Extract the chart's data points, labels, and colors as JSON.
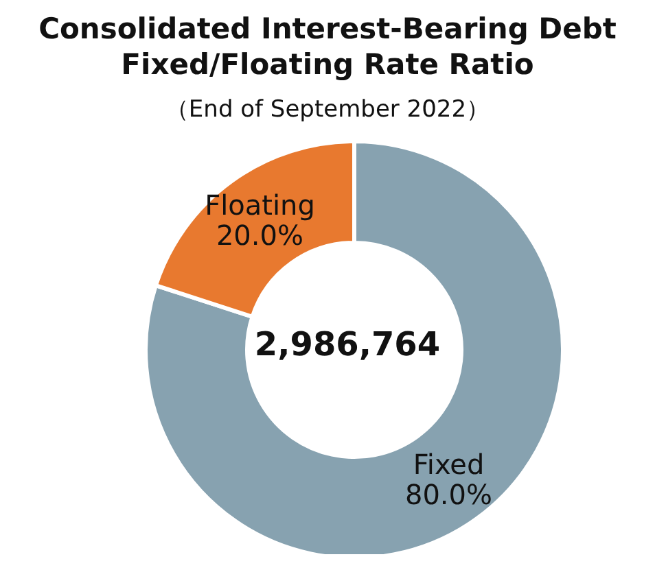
{
  "chart_data": {
    "type": "donut",
    "title": "Consolidated Interest-Bearing Debt\nFixed/Floating Rate Ratio",
    "subtitle": "（End of September 2022）",
    "categories": [
      "Fixed",
      "Floating"
    ],
    "values": [
      80.0,
      20.0
    ],
    "value_labels": [
      "80.0%",
      "20.0%"
    ],
    "colors": [
      "#87a2b0",
      "#e8792f"
    ],
    "annotations": [
      "2,986,764"
    ]
  }
}
